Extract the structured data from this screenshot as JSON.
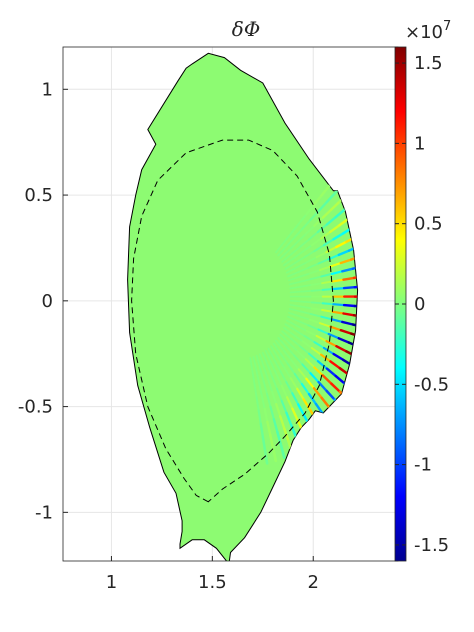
{
  "chart_data": {
    "type": "heatmap",
    "title": "δΦ",
    "xlabel": "",
    "ylabel": "",
    "xlim": [
      0.76,
      2.42
    ],
    "ylim": [
      -1.23,
      1.2
    ],
    "x_ticks": [
      1,
      1.5,
      2
    ],
    "x_tick_labels": [
      "1",
      "1.5",
      "2"
    ],
    "y_ticks": [
      1,
      0.5,
      0,
      -0.5,
      -1
    ],
    "y_tick_labels": [
      "1",
      "0.5",
      "0",
      "-0.5",
      "-1"
    ],
    "grid": true,
    "colormap": "jet",
    "colorbar": {
      "exponent_label": "×10",
      "exponent_power": "7",
      "limits": [
        -1.6,
        1.6
      ],
      "ticks": [
        1.5,
        1,
        0.5,
        0,
        -0.5,
        -1,
        -1.5
      ],
      "tick_labels": [
        "1.5",
        "1",
        "0.5",
        "0",
        "-0.5",
        "-1",
        "-1.5"
      ]
    },
    "field": {
      "background_value": 0,
      "wave_center": [
        1.88,
        -0.05
      ],
      "wave_peak": 1.6
    },
    "wall_outline": [
      [
        1.33,
        1.04
      ],
      [
        1.37,
        1.1
      ],
      [
        1.4,
        1.12
      ],
      [
        1.48,
        1.17
      ],
      [
        1.56,
        1.15
      ],
      [
        1.64,
        1.09
      ],
      [
        1.75,
        1.03
      ],
      [
        1.86,
        0.84
      ],
      [
        1.98,
        0.67
      ],
      [
        2.1,
        0.52
      ],
      [
        2.12,
        0.52
      ],
      [
        2.16,
        0.42
      ],
      [
        2.2,
        0.24
      ],
      [
        2.22,
        0.05
      ],
      [
        2.21,
        -0.14
      ],
      [
        2.18,
        -0.3
      ],
      [
        2.14,
        -0.44
      ],
      [
        2.05,
        -0.53
      ],
      [
        2.01,
        -0.52
      ],
      [
        1.98,
        -0.56
      ],
      [
        1.94,
        -0.6
      ],
      [
        1.9,
        -0.66
      ],
      [
        1.86,
        -0.76
      ],
      [
        1.8,
        -0.88
      ],
      [
        1.74,
        -1.0
      ],
      [
        1.66,
        -1.12
      ],
      [
        1.59,
        -1.19
      ],
      [
        1.58,
        -1.26
      ],
      [
        1.57,
        -1.23
      ],
      [
        1.52,
        -1.17
      ],
      [
        1.46,
        -1.13
      ],
      [
        1.4,
        -1.13
      ],
      [
        1.34,
        -1.17
      ],
      [
        1.34,
        -1.15
      ],
      [
        1.35,
        -1.09
      ],
      [
        1.35,
        -1.04
      ],
      [
        1.32,
        -0.91
      ],
      [
        1.26,
        -0.81
      ],
      [
        1.19,
        -0.6
      ],
      [
        1.13,
        -0.4
      ],
      [
        1.09,
        -0.15
      ],
      [
        1.08,
        0.1
      ],
      [
        1.09,
        0.35
      ],
      [
        1.12,
        0.5
      ],
      [
        1.15,
        0.62
      ],
      [
        1.22,
        0.74
      ],
      [
        1.18,
        0.81
      ]
    ],
    "separatrix": [
      [
        1.48,
        -0.95
      ],
      [
        1.42,
        -0.92
      ],
      [
        1.36,
        -0.84
      ],
      [
        1.27,
        -0.7
      ],
      [
        1.18,
        -0.5
      ],
      [
        1.12,
        -0.25
      ],
      [
        1.1,
        0.0
      ],
      [
        1.11,
        0.2
      ],
      [
        1.15,
        0.4
      ],
      [
        1.23,
        0.57
      ],
      [
        1.37,
        0.7
      ],
      [
        1.55,
        0.76
      ],
      [
        1.68,
        0.76
      ],
      [
        1.8,
        0.71
      ],
      [
        1.92,
        0.59
      ],
      [
        2.02,
        0.42
      ],
      [
        2.08,
        0.22
      ],
      [
        2.1,
        0.0
      ],
      [
        2.08,
        -0.2
      ],
      [
        2.03,
        -0.4
      ],
      [
        1.96,
        -0.53
      ],
      [
        1.86,
        -0.64
      ],
      [
        1.78,
        -0.72
      ],
      [
        1.66,
        -0.82
      ],
      [
        1.55,
        -0.89
      ],
      [
        1.48,
        -0.95
      ]
    ]
  }
}
